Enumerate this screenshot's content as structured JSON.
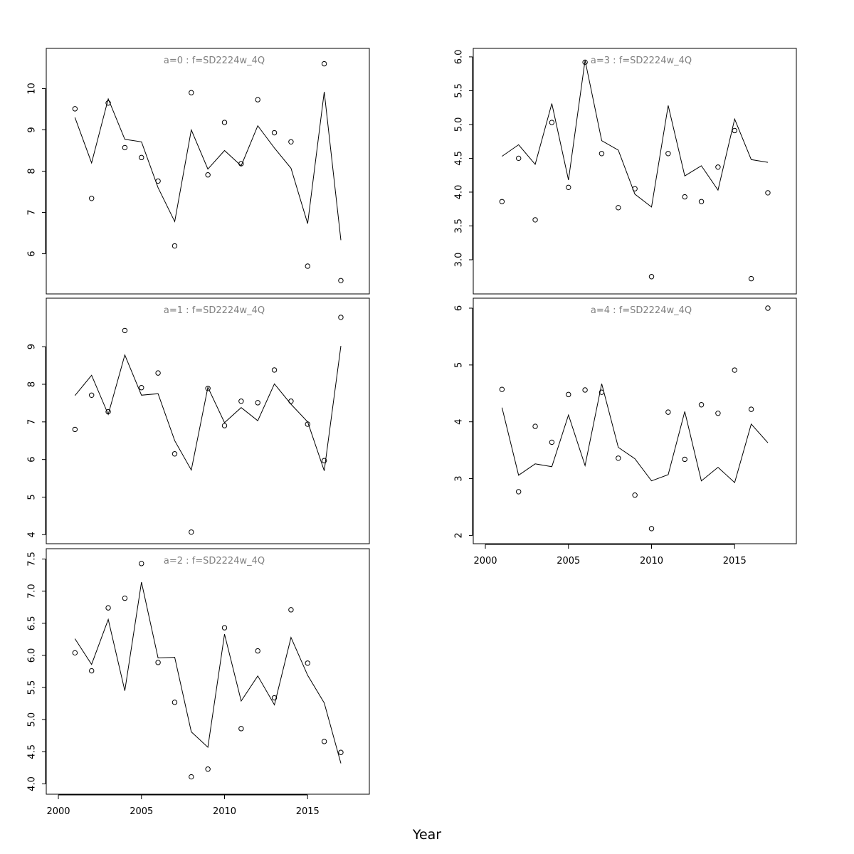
{
  "xlabel": "Year",
  "chart_data": [
    {
      "type": "line",
      "title": "a=0  :  f=SD2224w_4Q",
      "x": [
        2001,
        2002,
        2003,
        2004,
        2005,
        2006,
        2007,
        2008,
        2009,
        2010,
        2011,
        2012,
        2013,
        2014,
        2015,
        2016,
        2017
      ],
      "series": [
        {
          "style": "line",
          "values": [
            9.3,
            8.2,
            9.75,
            8.77,
            8.71,
            7.6,
            6.78,
            9.0,
            8.05,
            8.5,
            8.13,
            9.1,
            8.56,
            8.07,
            6.73,
            9.92,
            6.33
          ]
        },
        {
          "style": "points",
          "values": [
            9.51,
            7.34,
            9.65,
            8.57,
            8.33,
            7.76,
            6.19,
            9.9,
            7.91,
            9.18,
            8.18,
            9.73,
            8.93,
            8.71,
            5.7,
            10.6,
            5.35
          ]
        }
      ],
      "ylim": [
        5.2,
        10.8
      ],
      "yticks": [
        6,
        7,
        8,
        9,
        10
      ],
      "xlim": [
        2000,
        2019
      ],
      "xticks": [],
      "show_x_axis": false
    },
    {
      "type": "line",
      "title": "a=1  :  f=SD2224w_4Q",
      "x": [
        2001,
        2002,
        2003,
        2004,
        2005,
        2006,
        2007,
        2008,
        2009,
        2010,
        2011,
        2012,
        2013,
        2014,
        2015,
        2016,
        2017
      ],
      "series": [
        {
          "style": "line",
          "values": [
            7.7,
            8.24,
            7.2,
            8.78,
            7.71,
            7.75,
            6.5,
            5.72,
            7.92,
            6.98,
            7.38,
            7.03,
            8.01,
            7.47,
            7.0,
            5.7,
            9.02
          ]
        },
        {
          "style": "points",
          "values": [
            6.8,
            7.71,
            7.27,
            9.43,
            7.91,
            8.3,
            6.15,
            4.07,
            7.89,
            6.9,
            7.55,
            7.51,
            8.38,
            7.55,
            6.94,
            5.97,
            9.78
          ]
        }
      ],
      "ylim": [
        3.95,
        10.1
      ],
      "yticks": [
        4,
        5,
        6,
        7,
        8,
        9
      ],
      "xlim": [
        2000,
        2019
      ],
      "xticks": [],
      "show_x_axis": false
    },
    {
      "type": "line",
      "title": "a=2  :  f=SD2224w_4Q",
      "x": [
        2001,
        2002,
        2003,
        2004,
        2005,
        2006,
        2007,
        2008,
        2009,
        2010,
        2011,
        2012,
        2013,
        2014,
        2015,
        2016,
        2017
      ],
      "series": [
        {
          "style": "line",
          "values": [
            6.26,
            5.86,
            6.56,
            5.45,
            7.14,
            5.96,
            5.97,
            4.81,
            4.57,
            6.33,
            5.29,
            5.68,
            5.23,
            6.28,
            5.69,
            5.26,
            4.32
          ]
        },
        {
          "style": "points",
          "values": [
            6.04,
            5.76,
            6.74,
            6.89,
            7.43,
            5.89,
            5.27,
            4.11,
            4.23,
            6.43,
            4.86,
            6.07,
            5.34,
            6.71,
            5.88,
            4.66,
            4.49
          ]
        }
      ],
      "ylim": [
        3.95,
        7.55
      ],
      "yticks": [
        4.0,
        4.5,
        5.0,
        5.5,
        6.0,
        6.5,
        7.0,
        7.5
      ],
      "xlim": [
        2000,
        2019
      ],
      "xticks": [
        2000,
        2005,
        2010,
        2015
      ],
      "show_x_axis": true
    },
    {
      "type": "line",
      "title": "a=3  :  f=SD2224w_4Q",
      "x": [
        2001,
        2002,
        2003,
        2004,
        2005,
        2006,
        2007,
        2008,
        2009,
        2010,
        2011,
        2012,
        2013,
        2014,
        2015,
        2016,
        2017
      ],
      "series": [
        {
          "style": "line",
          "values": [
            4.53,
            4.7,
            4.41,
            5.31,
            4.18,
            5.95,
            4.76,
            4.62,
            3.97,
            3.78,
            5.28,
            4.24,
            4.39,
            4.03,
            5.08,
            4.48,
            4.44
          ]
        },
        {
          "style": "points",
          "values": [
            3.86,
            4.5,
            3.59,
            5.03,
            4.07,
            5.92,
            4.57,
            3.77,
            4.05,
            2.75,
            4.57,
            3.93,
            3.86,
            4.37,
            4.91,
            2.72,
            3.99
          ]
        }
      ],
      "ylim": [
        2.6,
        6.02
      ],
      "yticks": [
        3.0,
        3.5,
        4.0,
        4.5,
        5.0,
        5.5,
        6.0
      ],
      "xlim": [
        2000,
        2019
      ],
      "xticks": [],
      "show_x_axis": false
    },
    {
      "type": "line",
      "title": "a=4  :  f=SD2224w_4Q",
      "x": [
        2001,
        2002,
        2003,
        2004,
        2005,
        2006,
        2007,
        2008,
        2009,
        2010,
        2011,
        2012,
        2013,
        2014,
        2015,
        2016,
        2017
      ],
      "series": [
        {
          "style": "line",
          "values": [
            4.25,
            3.06,
            3.26,
            3.21,
            4.12,
            3.23,
            4.67,
            3.55,
            3.35,
            2.96,
            3.07,
            4.18,
            2.96,
            3.2,
            2.93,
            3.96,
            3.63
          ]
        },
        {
          "style": "points",
          "values": [
            4.57,
            2.77,
            3.92,
            3.64,
            4.48,
            4.56,
            4.52,
            3.36,
            2.71,
            2.12,
            4.17,
            3.34,
            4.3,
            4.15,
            4.91,
            4.22,
            6.0
          ]
        }
      ],
      "ylim": [
        1.98,
        6.05
      ],
      "yticks": [
        2,
        3,
        4,
        5,
        6
      ],
      "xlim": [
        2000,
        2019
      ],
      "xticks": [
        2000,
        2005,
        2010,
        2015
      ],
      "show_x_axis": true
    }
  ]
}
